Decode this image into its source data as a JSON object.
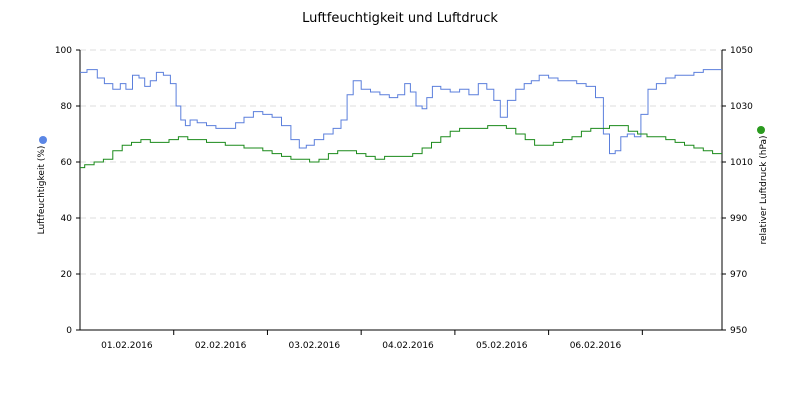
{
  "chart_data": {
    "type": "line",
    "title": "Luftfeuchtigkeit und Luftdruck",
    "x_axis": {
      "tick_labels": [
        "01.02.2016",
        "02.02.2016",
        "03.02.2016",
        "04.02.2016",
        "05.02.2016",
        "06.02.2016"
      ],
      "range_days": [
        0,
        6.85
      ]
    },
    "y_left": {
      "label": "Luftfeuchtigkeit (%)",
      "range": [
        0,
        100
      ],
      "ticks": [
        0,
        20,
        40,
        60,
        80,
        100
      ]
    },
    "y_right": {
      "label": "relativer Luftdruck (hPa)",
      "range": [
        950,
        1050
      ],
      "ticks": [
        950,
        970,
        990,
        1010,
        1030,
        1050
      ]
    },
    "grid": true,
    "series": [
      {
        "axis": "left",
        "color": "#5b7fdc",
        "marker_color": "#5b86e5",
        "points": [
          [
            0.0,
            92
          ],
          [
            0.15,
            93
          ],
          [
            0.22,
            90
          ],
          [
            0.3,
            88
          ],
          [
            0.4,
            86
          ],
          [
            0.46,
            88
          ],
          [
            0.52,
            86
          ],
          [
            0.6,
            91
          ],
          [
            0.66,
            90
          ],
          [
            0.72,
            87
          ],
          [
            0.78,
            89
          ],
          [
            0.85,
            92
          ],
          [
            0.93,
            91
          ],
          [
            1.0,
            88
          ],
          [
            1.05,
            80
          ],
          [
            1.1,
            75
          ],
          [
            1.15,
            73
          ],
          [
            1.2,
            75
          ],
          [
            1.3,
            74
          ],
          [
            1.4,
            73
          ],
          [
            1.5,
            72
          ],
          [
            1.62,
            72
          ],
          [
            1.7,
            74
          ],
          [
            1.8,
            76
          ],
          [
            1.9,
            78
          ],
          [
            2.0,
            77
          ],
          [
            2.1,
            76
          ],
          [
            2.2,
            73
          ],
          [
            2.3,
            68
          ],
          [
            2.38,
            65
          ],
          [
            2.45,
            66
          ],
          [
            2.55,
            68
          ],
          [
            2.65,
            70
          ],
          [
            2.75,
            72
          ],
          [
            2.82,
            75
          ],
          [
            2.88,
            84
          ],
          [
            2.95,
            89
          ],
          [
            3.05,
            86
          ],
          [
            3.15,
            85
          ],
          [
            3.25,
            84
          ],
          [
            3.35,
            83
          ],
          [
            3.43,
            84
          ],
          [
            3.5,
            88
          ],
          [
            3.55,
            85
          ],
          [
            3.62,
            80
          ],
          [
            3.68,
            79
          ],
          [
            3.72,
            83
          ],
          [
            3.8,
            87
          ],
          [
            3.9,
            86
          ],
          [
            4.0,
            85
          ],
          [
            4.1,
            86
          ],
          [
            4.2,
            84
          ],
          [
            4.3,
            88
          ],
          [
            4.38,
            86
          ],
          [
            4.45,
            82
          ],
          [
            4.52,
            76
          ],
          [
            4.6,
            82
          ],
          [
            4.7,
            86
          ],
          [
            4.78,
            88
          ],
          [
            4.85,
            89
          ],
          [
            4.95,
            91
          ],
          [
            5.05,
            90
          ],
          [
            5.15,
            89
          ],
          [
            5.25,
            89
          ],
          [
            5.35,
            88
          ],
          [
            5.45,
            87
          ],
          [
            5.55,
            83
          ],
          [
            5.62,
            70
          ],
          [
            5.68,
            63
          ],
          [
            5.74,
            64
          ],
          [
            5.8,
            69
          ],
          [
            5.88,
            70
          ],
          [
            5.95,
            69
          ],
          [
            6.02,
            77
          ],
          [
            6.1,
            86
          ],
          [
            6.2,
            88
          ],
          [
            6.3,
            90
          ],
          [
            6.4,
            91
          ],
          [
            6.5,
            91
          ],
          [
            6.6,
            92
          ],
          [
            6.7,
            93
          ],
          [
            6.8,
            93
          ],
          [
            6.85,
            93
          ]
        ]
      },
      {
        "axis": "right",
        "color": "#1a8a1a",
        "marker_color": "#2a9a1e",
        "points": [
          [
            0.0,
            1008
          ],
          [
            0.1,
            1009
          ],
          [
            0.2,
            1010
          ],
          [
            0.3,
            1011
          ],
          [
            0.4,
            1014
          ],
          [
            0.5,
            1016
          ],
          [
            0.6,
            1017
          ],
          [
            0.7,
            1018
          ],
          [
            0.8,
            1017
          ],
          [
            0.9,
            1017
          ],
          [
            1.0,
            1018
          ],
          [
            1.1,
            1019
          ],
          [
            1.2,
            1018
          ],
          [
            1.3,
            1018
          ],
          [
            1.4,
            1017
          ],
          [
            1.5,
            1017
          ],
          [
            1.6,
            1016
          ],
          [
            1.7,
            1016
          ],
          [
            1.8,
            1015
          ],
          [
            1.9,
            1015
          ],
          [
            2.0,
            1014
          ],
          [
            2.1,
            1013
          ],
          [
            2.2,
            1012
          ],
          [
            2.3,
            1011
          ],
          [
            2.4,
            1011
          ],
          [
            2.5,
            1010
          ],
          [
            2.6,
            1011
          ],
          [
            2.7,
            1013
          ],
          [
            2.8,
            1014
          ],
          [
            2.9,
            1014
          ],
          [
            3.0,
            1013
          ],
          [
            3.1,
            1012
          ],
          [
            3.2,
            1011
          ],
          [
            3.3,
            1012
          ],
          [
            3.4,
            1012
          ],
          [
            3.5,
            1012
          ],
          [
            3.6,
            1013
          ],
          [
            3.7,
            1015
          ],
          [
            3.8,
            1017
          ],
          [
            3.9,
            1019
          ],
          [
            4.0,
            1021
          ],
          [
            4.1,
            1022
          ],
          [
            4.2,
            1022
          ],
          [
            4.3,
            1022
          ],
          [
            4.4,
            1023
          ],
          [
            4.5,
            1023
          ],
          [
            4.6,
            1022
          ],
          [
            4.7,
            1020
          ],
          [
            4.8,
            1018
          ],
          [
            4.9,
            1016
          ],
          [
            5.0,
            1016
          ],
          [
            5.1,
            1017
          ],
          [
            5.2,
            1018
          ],
          [
            5.3,
            1019
          ],
          [
            5.4,
            1021
          ],
          [
            5.5,
            1022
          ],
          [
            5.6,
            1022
          ],
          [
            5.7,
            1023
          ],
          [
            5.8,
            1023
          ],
          [
            5.9,
            1021
          ],
          [
            6.0,
            1020
          ],
          [
            6.1,
            1019
          ],
          [
            6.2,
            1019
          ],
          [
            6.3,
            1018
          ],
          [
            6.4,
            1017
          ],
          [
            6.5,
            1016
          ],
          [
            6.6,
            1015
          ],
          [
            6.7,
            1014
          ],
          [
            6.8,
            1013
          ],
          [
            6.85,
            1013
          ]
        ]
      }
    ],
    "legend": "none"
  }
}
